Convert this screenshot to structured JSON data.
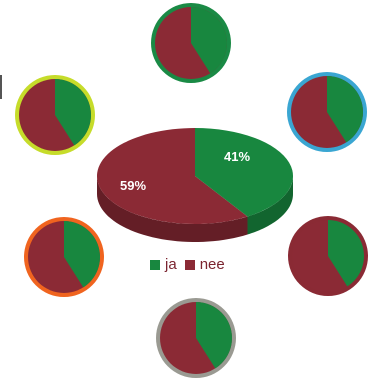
{
  "chart_data": {
    "type": "pie",
    "categories": [
      "ja",
      "nee"
    ],
    "values": [
      41,
      59
    ],
    "data_labels": [
      "41%",
      "59%"
    ],
    "colors": {
      "ja": "#18873f",
      "nee": "#8b2a35"
    },
    "legend_position": "bottom",
    "small_pies": [
      {
        "ring_color": "#1a8a45"
      },
      {
        "ring_color": "#c6dc2a"
      },
      {
        "ring_color": "#3aa6d2"
      },
      {
        "ring_color": "#f0641f"
      },
      {
        "ring_color": "#8a2a34"
      },
      {
        "ring_color": "#9a9a92"
      }
    ]
  },
  "legend": {
    "ja_label": "ja",
    "nee_label": "nee"
  }
}
